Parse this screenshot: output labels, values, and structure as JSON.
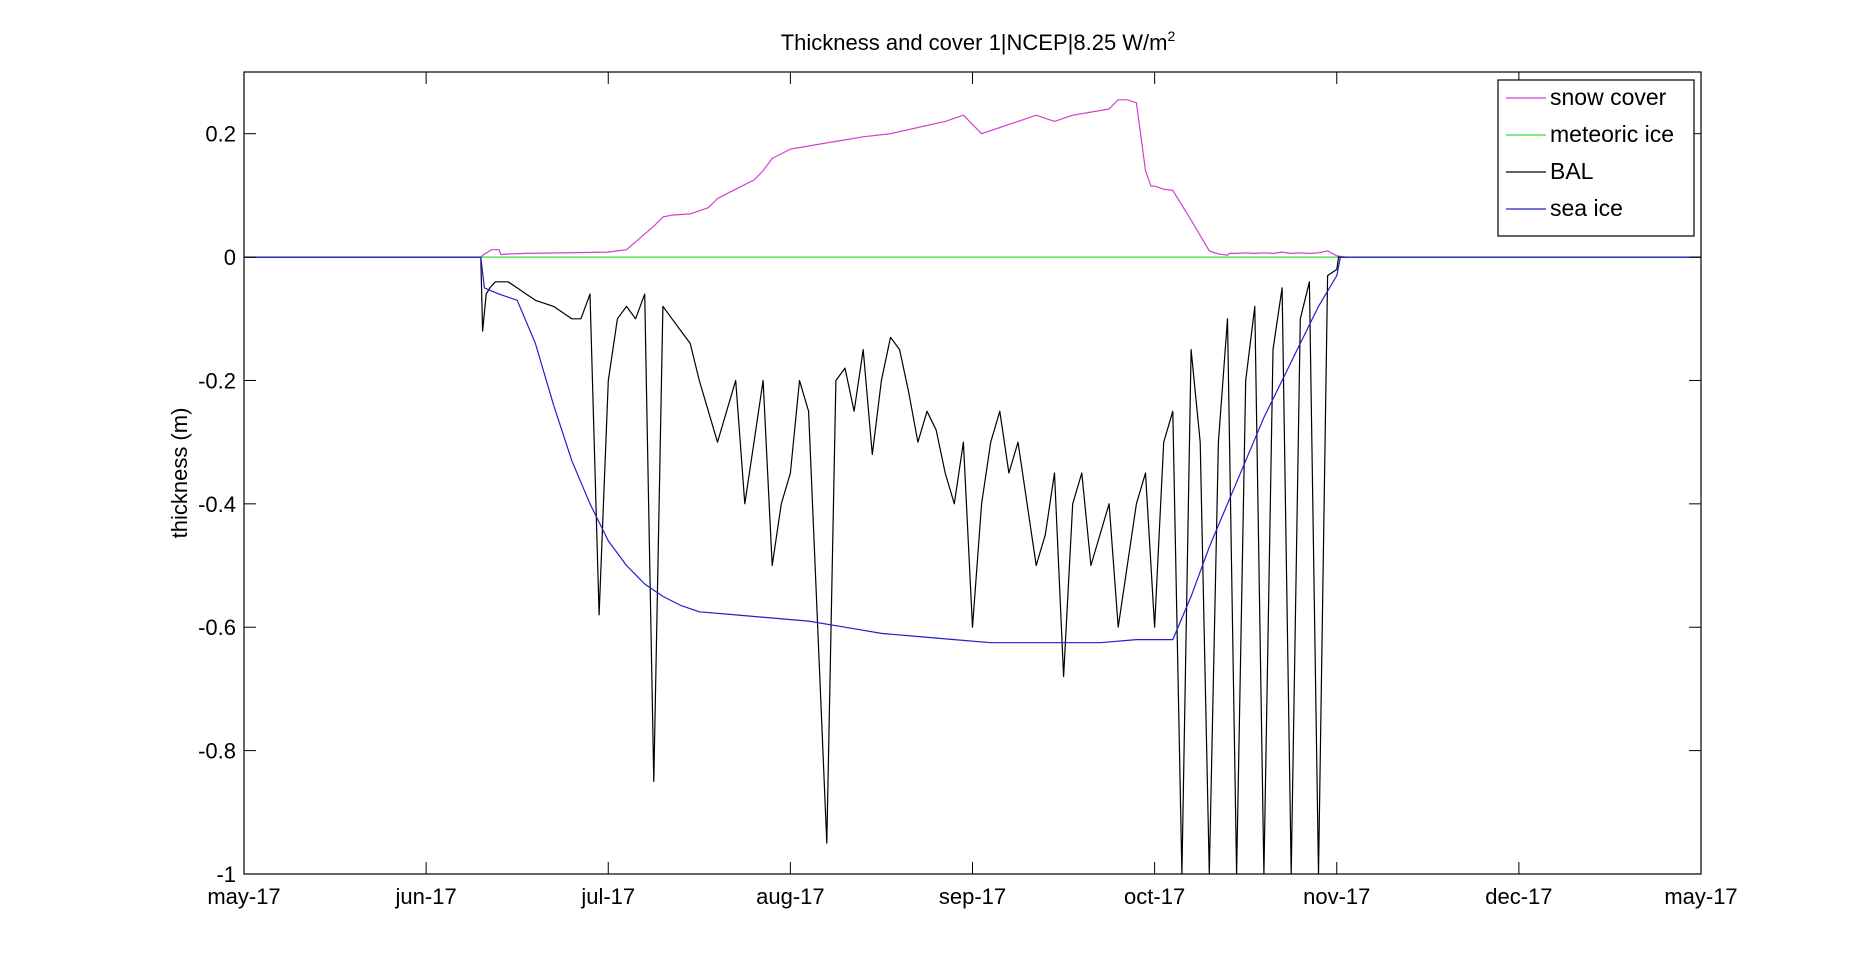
{
  "chart_data": {
    "type": "line",
    "title": "Thickness and cover 1|NCEP|8.25 W/m",
    "title_superscript": "2",
    "xlabel": "",
    "ylabel": "thickness (m)",
    "x_ticks": [
      "may-17",
      "jun-17",
      "jul-17",
      "aug-17",
      "sep-17",
      "oct-17",
      "nov-17",
      "dec-17",
      "may-17"
    ],
    "y_ticks": [
      "-1",
      "-0.8",
      "-0.6",
      "-0.4",
      "-0.2",
      "0",
      "0.2"
    ],
    "ylim": [
      -1,
      0.3
    ],
    "xlim_months": [
      0,
      8
    ],
    "grid": false,
    "legend_position": "top-right",
    "series": [
      {
        "name": "snow cover",
        "color": "#d040d0",
        "x": [
          0,
          1.3,
          1.32,
          1.36,
          1.4,
          1.41,
          1.45,
          1.55,
          2.0,
          2.05,
          2.1,
          2.25,
          2.3,
          2.35,
          2.45,
          2.55,
          2.6,
          2.7,
          2.8,
          2.85,
          2.9,
          3.0,
          3.1,
          3.2,
          3.3,
          3.4,
          3.55,
          3.7,
          3.85,
          3.95,
          4.05,
          4.15,
          4.25,
          4.35,
          4.45,
          4.55,
          4.65,
          4.75,
          4.8,
          4.85,
          4.9,
          4.95,
          4.98,
          5.0,
          5.05,
          5.1,
          5.2,
          5.3,
          5.35,
          5.4,
          5.41,
          5.45,
          5.5,
          5.55,
          5.6,
          5.65,
          5.7,
          5.75,
          5.8,
          5.85,
          5.9,
          5.95,
          6.0,
          6.05
        ],
        "y": [
          0,
          0,
          0.005,
          0.012,
          0.012,
          0.004,
          0.005,
          0.006,
          0.008,
          0.01,
          0.012,
          0.05,
          0.065,
          0.068,
          0.07,
          0.08,
          0.095,
          0.11,
          0.125,
          0.14,
          0.16,
          0.175,
          0.18,
          0.185,
          0.19,
          0.195,
          0.2,
          0.21,
          0.22,
          0.23,
          0.2,
          0.21,
          0.22,
          0.23,
          0.22,
          0.23,
          0.235,
          0.24,
          0.255,
          0.255,
          0.25,
          0.14,
          0.115,
          0.115,
          0.11,
          0.108,
          0.06,
          0.01,
          0.005,
          0.003,
          0.006,
          0.006,
          0.007,
          0.006,
          0.007,
          0.006,
          0.008,
          0.006,
          0.007,
          0.006,
          0.007,
          0.01,
          0.002,
          0
        ]
      },
      {
        "name": "meteoric ice",
        "color": "#33dd33",
        "x": [
          0,
          8
        ],
        "y": [
          0,
          0
        ]
      },
      {
        "name": "BAL",
        "color": "#000000",
        "x": [
          0,
          1.3,
          1.31,
          1.33,
          1.35,
          1.38,
          1.45,
          1.5,
          1.55,
          1.6,
          1.7,
          1.8,
          1.85,
          1.9,
          1.95,
          2.0,
          2.05,
          2.1,
          2.15,
          2.2,
          2.25,
          2.3,
          2.35,
          2.4,
          2.45,
          2.5,
          2.55,
          2.6,
          2.65,
          2.7,
          2.75,
          2.8,
          2.85,
          2.9,
          2.95,
          3.0,
          3.05,
          3.1,
          3.15,
          3.2,
          3.25,
          3.3,
          3.35,
          3.4,
          3.45,
          3.5,
          3.55,
          3.6,
          3.65,
          3.7,
          3.75,
          3.8,
          3.85,
          3.9,
          3.95,
          4.0,
          4.05,
          4.1,
          4.15,
          4.2,
          4.25,
          4.3,
          4.35,
          4.4,
          4.45,
          4.5,
          4.55,
          4.6,
          4.65,
          4.7,
          4.75,
          4.8,
          4.85,
          4.9,
          4.95,
          5.0,
          5.05,
          5.1,
          5.15,
          5.2,
          5.25,
          5.3,
          5.35,
          5.4,
          5.45,
          5.5,
          5.55,
          5.6,
          5.65,
          5.7,
          5.75,
          5.8,
          5.85,
          5.9,
          5.95,
          6.0,
          6.01,
          8
        ],
        "y": [
          0,
          0,
          -0.12,
          -0.06,
          -0.05,
          -0.04,
          -0.04,
          -0.05,
          -0.06,
          -0.07,
          -0.08,
          -0.1,
          -0.1,
          -0.06,
          -0.58,
          -0.2,
          -0.1,
          -0.08,
          -0.1,
          -0.06,
          -0.85,
          -0.08,
          -0.1,
          -0.12,
          -0.14,
          -0.2,
          -0.25,
          -0.3,
          -0.25,
          -0.2,
          -0.4,
          -0.3,
          -0.2,
          -0.5,
          -0.4,
          -0.35,
          -0.2,
          -0.25,
          -0.6,
          -0.95,
          -0.2,
          -0.18,
          -0.25,
          -0.15,
          -0.32,
          -0.2,
          -0.13,
          -0.15,
          -0.22,
          -0.3,
          -0.25,
          -0.28,
          -0.35,
          -0.4,
          -0.3,
          -0.6,
          -0.4,
          -0.3,
          -0.25,
          -0.35,
          -0.3,
          -0.4,
          -0.5,
          -0.45,
          -0.35,
          -0.68,
          -0.4,
          -0.35,
          -0.5,
          -0.45,
          -0.4,
          -0.6,
          -0.5,
          -0.4,
          -0.35,
          -0.6,
          -0.3,
          -0.25,
          -1.0,
          -0.15,
          -0.3,
          -1.0,
          -0.3,
          -0.1,
          -1.0,
          -0.2,
          -0.08,
          -1.0,
          -0.15,
          -0.05,
          -1.0,
          -0.1,
          -0.04,
          -1.0,
          -0.03,
          -0.02,
          0,
          0
        ]
      },
      {
        "name": "sea ice",
        "color": "#2020cc",
        "x": [
          0,
          1.3,
          1.32,
          1.4,
          1.5,
          1.6,
          1.7,
          1.8,
          1.9,
          2.0,
          2.1,
          2.2,
          2.3,
          2.4,
          2.5,
          2.7,
          2.9,
          3.1,
          3.3,
          3.5,
          3.7,
          3.9,
          4.1,
          4.3,
          4.5,
          4.7,
          4.9,
          5.1,
          5.2,
          5.3,
          5.4,
          5.5,
          5.6,
          5.7,
          5.8,
          5.9,
          6.0,
          6.02,
          8
        ],
        "y": [
          0,
          0,
          -0.05,
          -0.06,
          -0.07,
          -0.14,
          -0.24,
          -0.33,
          -0.4,
          -0.46,
          -0.5,
          -0.53,
          -0.55,
          -0.565,
          -0.575,
          -0.58,
          -0.585,
          -0.59,
          -0.6,
          -0.61,
          -0.615,
          -0.62,
          -0.625,
          -0.625,
          -0.625,
          -0.625,
          -0.62,
          -0.62,
          -0.55,
          -0.47,
          -0.4,
          -0.33,
          -0.26,
          -0.2,
          -0.14,
          -0.08,
          -0.03,
          0,
          0
        ]
      }
    ]
  }
}
